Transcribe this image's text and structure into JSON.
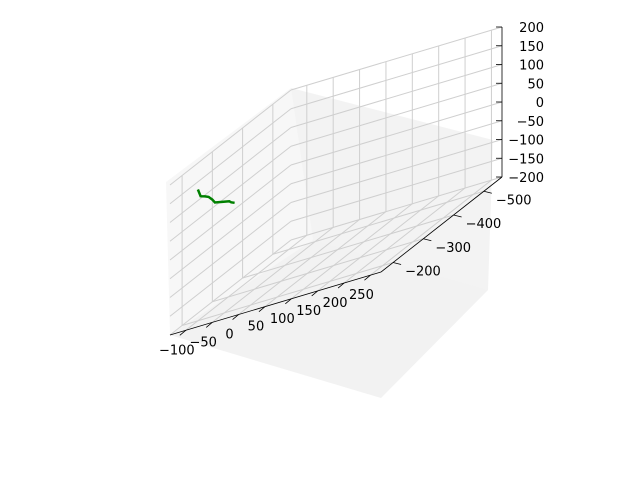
{
  "chart_data": {
    "type": "line3d",
    "title": "",
    "xlabel": "",
    "ylabel": "",
    "zlabel": "",
    "xlim": [
      -130,
      270
    ],
    "ylim": [
      -560,
      -160
    ],
    "zlim": [
      -200,
      200
    ],
    "x_ticks": [
      "−100",
      "−50",
      "0",
      "50",
      "100",
      "150",
      "200",
      "250"
    ],
    "y_ticks": [
      "−200",
      "−300",
      "−400",
      "−500"
    ],
    "z_ticks": [
      "200",
      "150",
      "100",
      "50",
      "0",
      "−50",
      "−100",
      "−150",
      "−200"
    ],
    "grid": true,
    "series": [
      {
        "color": "#008000",
        "x": [
          -100,
          -95,
          -95,
          -97,
          -90,
          -85,
          -80,
          -75,
          -80,
          -82
        ],
        "y": [
          -200,
          -200,
          -215,
          -230,
          -230,
          -230,
          -245,
          -260,
          -275,
          -290
        ],
        "z": [
          150,
          130,
          120,
          110,
          100,
          90,
          80,
          70,
          60,
          50
        ]
      }
    ]
  }
}
